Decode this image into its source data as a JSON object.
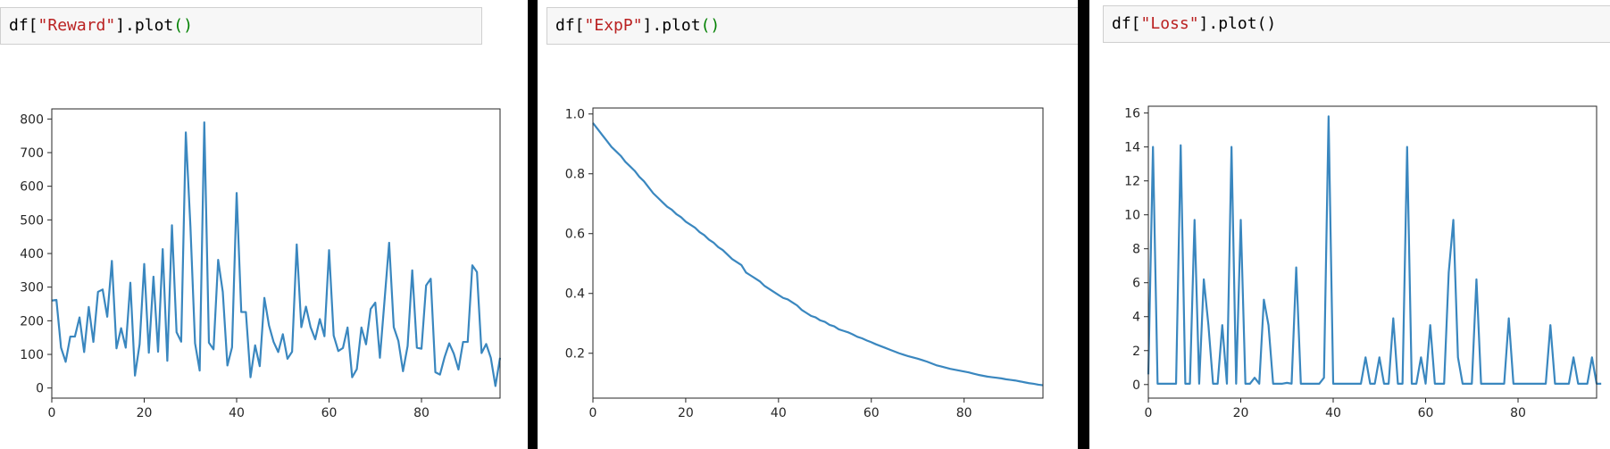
{
  "cells": [
    {
      "prefix": "df[",
      "string": "\"Reward\"",
      "mid": "].plot",
      "paren": "()",
      "paren_color": "#008000"
    },
    {
      "prefix": "df[",
      "string": "\"ExpP\"",
      "mid": "].plot",
      "paren": "()",
      "paren_color": "#008000"
    },
    {
      "prefix": "df[",
      "string": "\"Loss\"",
      "mid": "].plot",
      "paren": "()",
      "paren_color": "#000000"
    }
  ],
  "colors": {
    "line": "#3a87bf",
    "string": "#ba2121",
    "green": "#008000"
  },
  "chart_data": [
    {
      "type": "line",
      "xlim": [
        0,
        97
      ],
      "ylim": [
        -30,
        830
      ],
      "xticks": [
        0,
        20,
        40,
        60,
        80
      ],
      "xtick_labels": [
        "0",
        "20",
        "40",
        "60",
        "80"
      ],
      "yticks": [
        0,
        100,
        200,
        300,
        400,
        500,
        600,
        700,
        800
      ],
      "ytick_labels": [
        "0",
        "100",
        "200",
        "300",
        "400",
        "500",
        "600",
        "700",
        "800"
      ],
      "values": [
        260,
        262,
        120,
        78,
        153,
        153,
        210,
        107,
        241,
        137,
        286,
        293,
        212,
        378,
        118,
        178,
        120,
        313,
        37,
        130,
        369,
        105,
        331,
        108,
        413,
        81,
        484,
        166,
        138,
        760,
        480,
        133,
        52,
        790,
        135,
        115,
        381,
        286,
        67,
        121,
        580,
        226,
        226,
        32,
        127,
        65,
        268,
        186,
        137,
        107,
        160,
        87,
        108,
        427,
        181,
        242,
        181,
        145,
        205,
        154,
        410,
        156,
        110,
        119,
        180,
        32,
        56,
        180,
        130,
        235,
        254,
        90,
        260,
        432,
        181,
        140,
        50,
        125,
        350,
        120,
        117,
        305,
        325,
        47,
        40,
        92,
        133,
        102,
        55,
        137,
        137,
        365,
        345,
        104,
        131,
        90,
        6,
        90
      ]
    },
    {
      "type": "line",
      "xlim": [
        0,
        97
      ],
      "ylim": [
        0.05,
        1.02
      ],
      "xticks": [
        0,
        20,
        40,
        60,
        80
      ],
      "xtick_labels": [
        "0",
        "20",
        "40",
        "60",
        "80"
      ],
      "yticks": [
        0.2,
        0.4,
        0.6,
        0.8,
        1.0
      ],
      "ytick_labels": [
        "0.2",
        "0.4",
        "0.6",
        "0.8",
        "1.0"
      ],
      "values": [
        0.97,
        0.95,
        0.93,
        0.91,
        0.89,
        0.875,
        0.86,
        0.84,
        0.825,
        0.81,
        0.79,
        0.775,
        0.755,
        0.735,
        0.72,
        0.705,
        0.69,
        0.68,
        0.665,
        0.655,
        0.64,
        0.63,
        0.62,
        0.605,
        0.595,
        0.58,
        0.57,
        0.555,
        0.545,
        0.53,
        0.515,
        0.505,
        0.495,
        0.47,
        0.46,
        0.45,
        0.44,
        0.425,
        0.415,
        0.405,
        0.395,
        0.385,
        0.38,
        0.37,
        0.36,
        0.345,
        0.335,
        0.325,
        0.32,
        0.31,
        0.305,
        0.295,
        0.29,
        0.28,
        0.275,
        0.27,
        0.263,
        0.255,
        0.25,
        0.243,
        0.237,
        0.23,
        0.224,
        0.218,
        0.212,
        0.206,
        0.2,
        0.195,
        0.19,
        0.186,
        0.182,
        0.177,
        0.172,
        0.166,
        0.16,
        0.156,
        0.152,
        0.148,
        0.145,
        0.142,
        0.139,
        0.136,
        0.132,
        0.128,
        0.125,
        0.122,
        0.12,
        0.118,
        0.116,
        0.113,
        0.111,
        0.109,
        0.106,
        0.103,
        0.1,
        0.098,
        0.095,
        0.093
      ]
    },
    {
      "type": "line",
      "xlim": [
        0,
        97
      ],
      "ylim": [
        -0.8,
        16.4
      ],
      "xticks": [
        0,
        20,
        40,
        60,
        80
      ],
      "xtick_labels": [
        "0",
        "20",
        "40",
        "60",
        "80"
      ],
      "yticks": [
        0,
        2,
        4,
        6,
        8,
        10,
        12,
        14,
        16
      ],
      "ytick_labels": [
        "0",
        "2",
        "4",
        "6",
        "8",
        "10",
        "12",
        "14",
        "16"
      ],
      "values": [
        0.6,
        14,
        0.05,
        0.05,
        0.05,
        0.05,
        0.05,
        14.1,
        0.05,
        0.05,
        9.7,
        0.05,
        6.2,
        3.5,
        0.05,
        0.05,
        3.5,
        0.05,
        14,
        0.05,
        9.7,
        0.05,
        0.05,
        0.4,
        0.05,
        5.0,
        3.5,
        0.05,
        0.05,
        0.05,
        0.1,
        0.05,
        6.9,
        0.05,
        0.05,
        0.05,
        0.05,
        0.05,
        0.4,
        15.8,
        0.05,
        0.05,
        0.05,
        0.05,
        0.05,
        0.05,
        0.05,
        1.6,
        0.05,
        0.05,
        1.6,
        0.05,
        0.05,
        3.9,
        0.05,
        0.05,
        14,
        0.05,
        0.05,
        1.6,
        0.05,
        3.5,
        0.05,
        0.05,
        0.05,
        6.6,
        9.7,
        1.6,
        0.05,
        0.05,
        0.05,
        6.2,
        0.05,
        0.05,
        0.05,
        0.05,
        0.05,
        0.05,
        3.9,
        0.05,
        0.05,
        0.05,
        0.05,
        0.05,
        0.05,
        0.05,
        0.05,
        3.5,
        0.05,
        0.05,
        0.05,
        0.05,
        1.6,
        0.05,
        0.05,
        0.05,
        1.6,
        0.05,
        0.05
      ]
    }
  ]
}
